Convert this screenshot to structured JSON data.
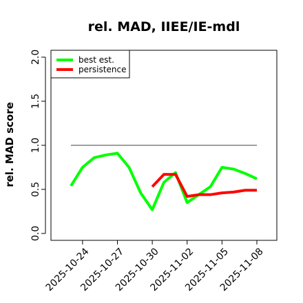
{
  "chart_data": {
    "type": "line",
    "title": "rel. MAD, IIEE/IE-mdl",
    "ylabel": "rel. MAD score",
    "xlabel": "",
    "ylim": [
      0.0,
      2.0
    ],
    "yticks": [
      "0.0",
      "0.5",
      "1.0",
      "1.5",
      "2.0"
    ],
    "x": [
      "2025-10-23",
      "2025-10-24",
      "2025-10-25",
      "2025-10-26",
      "2025-10-27",
      "2025-10-28",
      "2025-10-29",
      "2025-10-30",
      "2025-10-31",
      "2025-11-01",
      "2025-11-02",
      "2025-11-03",
      "2025-11-04",
      "2025-11-05",
      "2025-11-06",
      "2025-11-07",
      "2025-11-08"
    ],
    "xticks": [
      "2025-10-24",
      "2025-10-27",
      "2025-10-30",
      "2025-11-02",
      "2025-11-05",
      "2025-11-08"
    ],
    "reference_line": 1.0,
    "legend_position": "top-left",
    "series": [
      {
        "name": "best est.",
        "color": "#00ff00",
        "values": [
          0.54,
          0.75,
          0.86,
          0.89,
          0.91,
          0.75,
          0.46,
          0.27,
          0.58,
          0.69,
          0.35,
          0.44,
          0.53,
          0.75,
          0.73,
          0.68,
          0.62
        ]
      },
      {
        "name": "persistence",
        "color": "#ff0000",
        "values": [
          null,
          null,
          null,
          null,
          null,
          null,
          null,
          0.53,
          0.67,
          0.67,
          0.42,
          0.44,
          0.44,
          0.46,
          0.47,
          0.49,
          0.49
        ]
      }
    ]
  }
}
